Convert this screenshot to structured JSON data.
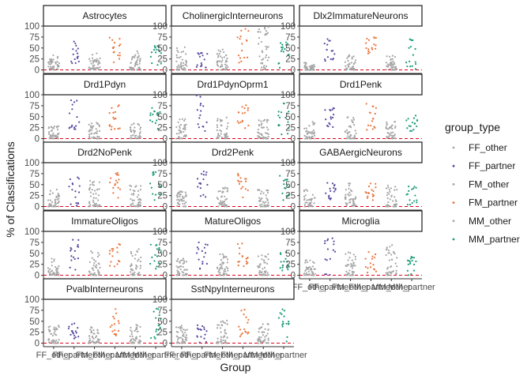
{
  "chart_data": {
    "type": "scatter",
    "facet_layout": "wrap-3-columns",
    "xlabel": "Group",
    "ylabel": "% of Classifications",
    "ylim": [
      0,
      100
    ],
    "yticks": [
      0,
      25,
      50,
      75,
      100
    ],
    "categories": [
      "FF_other",
      "FF_partner",
      "FM_other",
      "FM_partner",
      "MM_other",
      "MM_partner"
    ],
    "reference_line": {
      "y": 0,
      "style": "dashed",
      "color": "#e0001b"
    },
    "grid": false,
    "legend": {
      "title": "group_type",
      "position": "right",
      "entries": [
        {
          "label": "FF_other",
          "color": "#a6a6a6"
        },
        {
          "label": "FF_partner",
          "color": "#5b4aa0"
        },
        {
          "label": "FM_other",
          "color": "#a6a6a6"
        },
        {
          "label": "FM_partner",
          "color": "#e8743b"
        },
        {
          "label": "MM_other",
          "color": "#a6a6a6"
        },
        {
          "label": "MM_partner",
          "color": "#1a9b7a"
        }
      ]
    },
    "panels": [
      {
        "title": "Astrocytes",
        "ranges": [
          [
            0,
            35
          ],
          [
            15,
            65
          ],
          [
            0,
            40
          ],
          [
            15,
            75
          ],
          [
            0,
            45
          ],
          [
            10,
            55
          ]
        ]
      },
      {
        "title": "CholinergicInterneurons",
        "ranges": [
          [
            0,
            60
          ],
          [
            0,
            40
          ],
          [
            0,
            50
          ],
          [
            0,
            100
          ],
          [
            0,
            100
          ],
          [
            0,
            65
          ]
        ]
      },
      {
        "title": "Dlx2ImmatureNeurons",
        "ranges": [
          [
            0,
            20
          ],
          [
            20,
            75
          ],
          [
            0,
            35
          ],
          [
            10,
            75
          ],
          [
            0,
            35
          ],
          [
            0,
            75
          ]
        ]
      },
      {
        "title": "Drd1Pdyn",
        "ranges": [
          [
            0,
            30
          ],
          [
            20,
            90
          ],
          [
            0,
            40
          ],
          [
            20,
            80
          ],
          [
            0,
            35
          ],
          [
            15,
            70
          ]
        ]
      },
      {
        "title": "Drd1PdynOprm1",
        "ranges": [
          [
            0,
            45
          ],
          [
            0,
            100
          ],
          [
            0,
            50
          ],
          [
            20,
            80
          ],
          [
            0,
            45
          ],
          [
            0,
            85
          ]
        ]
      },
      {
        "title": "Drd1Penk",
        "ranges": [
          [
            0,
            40
          ],
          [
            20,
            75
          ],
          [
            0,
            50
          ],
          [
            20,
            80
          ],
          [
            0,
            40
          ],
          [
            15,
            65
          ]
        ]
      },
      {
        "title": "Drd2NoPenk",
        "ranges": [
          [
            0,
            40
          ],
          [
            0,
            70
          ],
          [
            0,
            60
          ],
          [
            15,
            80
          ],
          [
            0,
            50
          ],
          [
            10,
            80
          ]
        ]
      },
      {
        "title": "Drd2Penk",
        "ranges": [
          [
            0,
            35
          ],
          [
            20,
            85
          ],
          [
            0,
            45
          ],
          [
            20,
            75
          ],
          [
            0,
            40
          ],
          [
            10,
            70
          ]
        ]
      },
      {
        "title": "GABAergicNeurons",
        "ranges": [
          [
            0,
            40
          ],
          [
            15,
            55
          ],
          [
            0,
            55
          ],
          [
            10,
            55
          ],
          [
            0,
            50
          ],
          [
            0,
            50
          ]
        ]
      },
      {
        "title": "ImmatureOligos",
        "ranges": [
          [
            0,
            40
          ],
          [
            10,
            85
          ],
          [
            0,
            55
          ],
          [
            15,
            75
          ],
          [
            0,
            60
          ],
          [
            10,
            70
          ]
        ]
      },
      {
        "title": "MatureOligos",
        "ranges": [
          [
            0,
            40
          ],
          [
            10,
            75
          ],
          [
            0,
            50
          ],
          [
            20,
            75
          ],
          [
            0,
            50
          ],
          [
            10,
            65
          ]
        ]
      },
      {
        "title": "Microglia",
        "ranges": [
          [
            0,
            35
          ],
          [
            0,
            85
          ],
          [
            0,
            55
          ],
          [
            5,
            55
          ],
          [
            0,
            70
          ],
          [
            0,
            45
          ]
        ]
      },
      {
        "title": "PvalbInterneurons",
        "ranges": [
          [
            0,
            40
          ],
          [
            10,
            45
          ],
          [
            0,
            40
          ],
          [
            15,
            80
          ],
          [
            0,
            45
          ],
          [
            10,
            80
          ]
        ]
      },
      {
        "title": "SstNpyInterneurons",
        "ranges": [
          [
            0,
            40
          ],
          [
            0,
            45
          ],
          [
            0,
            55
          ],
          [
            15,
            85
          ],
          [
            0,
            45
          ],
          [
            0,
            80
          ]
        ]
      }
    ]
  }
}
